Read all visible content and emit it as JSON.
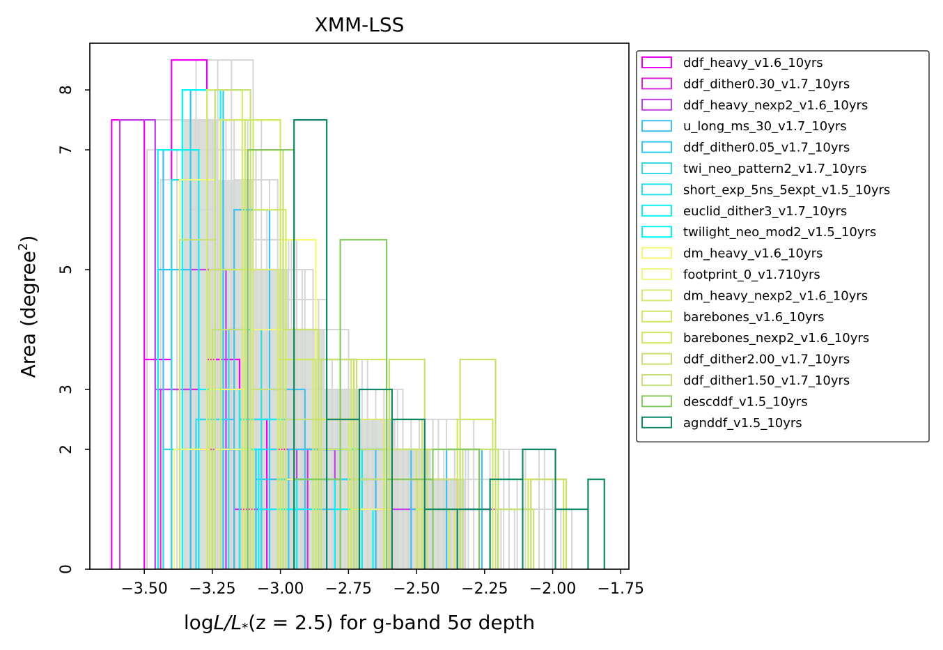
{
  "chart_data": {
    "type": "bar",
    "subtype": "step-histogram-overlay",
    "title": "XMM-LSS",
    "xlabel": {
      "prefix": "log",
      "mid": "L/L",
      "sub": "*",
      "paren": "(z = 2.5)",
      "suffix": " for g-band 5σ depth"
    },
    "ylabel": {
      "base": "Area (degree",
      "sup": "2",
      "end": ")"
    },
    "xlim": [
      -3.7,
      -1.72
    ],
    "ylim": [
      0,
      8.78
    ],
    "x_ticks": [
      -3.5,
      -3.25,
      -3.0,
      -2.75,
      -2.5,
      -2.25,
      -2.0,
      -1.75
    ],
    "x_tick_labels": [
      "−3.50",
      "−3.25",
      "−3.00",
      "−2.75",
      "−2.50",
      "−2.25",
      "−2.00",
      "−1.75"
    ],
    "y_ticks": [
      0,
      2,
      3,
      5,
      7,
      8
    ],
    "y_tick_labels": [
      "0",
      "2",
      "3",
      "5",
      "7",
      "8"
    ],
    "grid": false,
    "legend_position": "outside-right",
    "background_series_color": "#d6d6d6",
    "background_fill_color": "#d9ded9",
    "series": [
      {
        "name": "ddf_heavy_v1.6_10yrs",
        "color": "#f000f0",
        "edges": [
          -3.62,
          -3.5,
          -3.4,
          -3.27,
          -3.15,
          -3.05,
          -2.95,
          -2.85
        ],
        "counts": [
          7.5,
          3.5,
          8.5,
          3.5,
          2.5,
          2.0,
          1.0
        ]
      },
      {
        "name": "ddf_dither0.30_v1.7_10yrs",
        "color": "#e020e0",
        "edges": [
          -3.44,
          -3.3,
          -3.17,
          -3.05,
          -2.9,
          -2.75,
          -2.6
        ],
        "counts": [
          3.0,
          2.0,
          1.0,
          1.5,
          2.0,
          1.0
        ]
      },
      {
        "name": "ddf_heavy_nexp2_v1.6_10yrs",
        "color": "#c040e8",
        "edges": [
          -3.59,
          -3.46,
          -3.33,
          -3.2,
          -3.07,
          -2.94,
          -2.8,
          -2.65,
          -2.5,
          -2.35,
          -2.2
        ],
        "counts": [
          7.5,
          3.0,
          5.0,
          2.0,
          1.0,
          2.0,
          1.5,
          1.0,
          1.5,
          1.0
        ]
      },
      {
        "name": "u_long_ms_30_v1.7_10yrs",
        "color": "#40c0f0",
        "edges": [
          -3.43,
          -3.3,
          -3.17,
          -3.04,
          -2.91,
          -2.78,
          -2.65,
          -2.52,
          -2.39,
          -2.26
        ],
        "counts": [
          7.0,
          2.5,
          6.0,
          3.0,
          2.0,
          1.5,
          2.0,
          1.0,
          2.0
        ]
      },
      {
        "name": "ddf_dither0.05_v1.7_10yrs",
        "color": "#30c8f0",
        "edges": [
          -3.45,
          -3.33,
          -3.21,
          -3.09,
          -2.97,
          -2.85,
          -2.73,
          -2.61
        ],
        "counts": [
          5.0,
          8.0,
          2.0,
          1.5,
          2.0,
          1.0,
          2.0
        ]
      },
      {
        "name": "twi_neo_pattern2_v1.7_10yrs",
        "color": "#38d8e8",
        "edges": [
          -3.43,
          -3.31,
          -3.19,
          -3.07,
          -2.95,
          -2.83,
          -2.71
        ],
        "counts": [
          2.0,
          2.5,
          4.0,
          2.5,
          1.5,
          2.0
        ]
      },
      {
        "name": "short_exp_5ns_5expt_v1.5_10yrs",
        "color": "#20e0f0",
        "edges": [
          -3.4,
          -3.27,
          -3.14,
          -3.01,
          -2.88,
          -2.75,
          -2.62
        ],
        "counts": [
          6.5,
          3.0,
          2.0,
          1.5,
          1.5,
          2.0
        ]
      },
      {
        "name": "euclid_dither3_v1.7_10yrs",
        "color": "#10f0f0",
        "edges": [
          -3.45,
          -3.3,
          -3.15,
          -3.0,
          -2.85,
          -2.7
        ],
        "counts": [
          7.0,
          3.0,
          2.5,
          1.0,
          2.0
        ]
      },
      {
        "name": "twilight_neo_mod2_v1.5_10yrs",
        "color": "#00f8f8",
        "edges": [
          -3.36,
          -3.22,
          -3.08,
          -2.94,
          -2.8,
          -2.66
        ],
        "counts": [
          8.0,
          2.0,
          1.0,
          1.5,
          1.0
        ]
      },
      {
        "name": "dm_heavy_v1.6_10yrs",
        "color": "#f8f870",
        "edges": [
          -3.39,
          -3.26,
          -3.13,
          -3.0,
          -2.87,
          -2.74,
          -2.61,
          -2.48
        ],
        "counts": [
          2.0,
          3.0,
          7.0,
          5.5,
          2.5,
          1.0,
          2.0
        ]
      },
      {
        "name": "footprint_0_v1.710yrs",
        "color": "#f0f880",
        "edges": [
          -3.37,
          -3.24,
          -3.11,
          -2.98,
          -2.85,
          -2.72,
          -2.59
        ],
        "counts": [
          6.5,
          2.0,
          4.0,
          1.5,
          2.5,
          1.0
        ]
      },
      {
        "name": "dm_heavy_nexp2_v1.6_10yrs",
        "color": "#d8e870",
        "edges": [
          -3.27,
          -3.14,
          -3.01,
          -2.88,
          -2.75,
          -2.62,
          -2.49,
          -2.36
        ],
        "counts": [
          8.0,
          5.0,
          3.5,
          2.5,
          2.5,
          1.5,
          1.0
        ]
      },
      {
        "name": "barebones_v1.6_10yrs",
        "color": "#d0e868",
        "edges": [
          -3.22,
          -3.1,
          -2.98,
          -2.86,
          -2.74,
          -2.62,
          -2.5,
          -2.38
        ],
        "counts": [
          7.5,
          6.0,
          4.0,
          2.0,
          1.5,
          2.0,
          1.0
        ]
      },
      {
        "name": "barebones_nexp2_v1.6_10yrs",
        "color": "#d0e860",
        "edges": [
          -3.26,
          -3.13,
          -3.0,
          -2.87,
          -2.74,
          -2.61,
          -2.48,
          -2.35,
          -2.22,
          -2.09,
          -1.96
        ],
        "counts": [
          5.0,
          7.5,
          3.5,
          2.5,
          3.5,
          2.5,
          1.5,
          2.5,
          1.5,
          1.5
        ]
      },
      {
        "name": "ddf_dither2.00_v1.7_10yrs",
        "color": "#c8e070",
        "edges": [
          -3.25,
          -3.12,
          -2.99,
          -2.86,
          -2.73,
          -2.6,
          -2.47,
          -2.34,
          -2.21,
          -2.08,
          -1.95
        ],
        "counts": [
          4.0,
          7.0,
          4.0,
          3.5,
          2.0,
          3.5,
          2.0,
          3.5,
          1.0,
          1.5
        ]
      },
      {
        "name": "ddf_dither1.50_v1.7_10yrs",
        "color": "#c8e078",
        "edges": [
          -3.37,
          -3.24,
          -3.11,
          -2.98,
          -2.85,
          -2.72,
          -2.59,
          -2.46,
          -2.33,
          -2.2,
          -2.07
        ],
        "counts": [
          5.5,
          8.0,
          3.0,
          2.5,
          3.5,
          1.5,
          2.0,
          1.5,
          2.0,
          1.0
        ]
      },
      {
        "name": "descddf_v1.5_10yrs",
        "color": "#88c860",
        "edges": [
          -3.12,
          -2.95,
          -2.78,
          -2.61,
          -2.44,
          -2.27
        ],
        "counts": [
          7.0,
          1.5,
          5.5,
          1.5,
          2.0
        ]
      },
      {
        "name": "agnddf_v1.5_10yrs",
        "color": "#108868",
        "edges": [
          -2.95,
          -2.83,
          -2.71,
          -2.59,
          -2.47,
          -2.35,
          -2.23,
          -2.11,
          -1.99,
          -1.87,
          -1.81
        ],
        "counts": [
          7.5,
          2.5,
          3.0,
          2.5,
          1.0,
          1.0,
          1.5,
          2.0,
          1.0,
          1.5
        ]
      }
    ],
    "background_series": [
      {
        "edges": [
          -3.49,
          -3.36,
          -3.23,
          -3.1,
          -2.97,
          -2.84,
          -2.71,
          -2.58,
          -2.45,
          -2.32,
          -2.19
        ],
        "counts": [
          7.0,
          7.5,
          8.5,
          5.5,
          4.0,
          3.0,
          2.5,
          2.0,
          2.0,
          1.0
        ]
      },
      {
        "edges": [
          -3.4,
          -3.27,
          -3.14,
          -3.01,
          -2.88,
          -2.75,
          -2.62,
          -2.49,
          -2.36,
          -2.23,
          -2.1
        ],
        "counts": [
          7.5,
          7.5,
          6.5,
          5.0,
          4.0,
          3.0,
          2.5,
          2.0,
          1.5,
          2.0
        ]
      },
      {
        "edges": [
          -3.35,
          -3.22,
          -3.09,
          -2.96,
          -2.83,
          -2.7,
          -2.57,
          -2.44,
          -2.31,
          -2.18,
          -2.05
        ],
        "counts": [
          7.0,
          7.0,
          5.5,
          4.5,
          3.5,
          3.0,
          2.5,
          2.0,
          2.0,
          2.0
        ]
      },
      {
        "edges": [
          -3.3,
          -3.17,
          -3.04,
          -2.91,
          -2.78,
          -2.65,
          -2.52,
          -2.39,
          -2.26,
          -2.13,
          -2.0
        ],
        "counts": [
          7.5,
          6.5,
          5.0,
          4.0,
          3.0,
          2.5,
          2.5,
          1.5,
          1.0,
          1.5
        ]
      },
      {
        "edges": [
          -3.44,
          -3.31,
          -3.18,
          -3.05,
          -2.92,
          -2.79,
          -2.66,
          -2.53,
          -2.4,
          -2.27,
          -2.14
        ],
        "counts": [
          6.5,
          8.5,
          6.0,
          5.0,
          3.0,
          2.5,
          2.0,
          2.0,
          1.5,
          1.0
        ]
      },
      {
        "edges": [
          -3.46,
          -3.33,
          -3.2,
          -3.07,
          -2.94,
          -2.81,
          -2.68,
          -2.55,
          -2.42,
          -2.29,
          -2.16,
          -2.03
        ],
        "counts": [
          7.5,
          5.5,
          5.0,
          4.0,
          3.5,
          3.0,
          2.5,
          2.0,
          1.5,
          1.0,
          2.0
        ]
      },
      {
        "edges": [
          -3.38,
          -3.25,
          -3.12,
          -2.99,
          -2.86,
          -2.73,
          -2.6,
          -2.47,
          -2.34,
          -2.21,
          -2.08,
          -1.97
        ],
        "counts": [
          7.0,
          7.5,
          6.0,
          4.5,
          3.5,
          2.5,
          2.5,
          2.0,
          1.0,
          1.5,
          1.0
        ]
      },
      {
        "edges": [
          -3.33,
          -3.2,
          -3.07,
          -2.94,
          -2.81,
          -2.68,
          -2.55,
          -2.42,
          -2.29,
          -2.16,
          -2.03,
          -1.93
        ],
        "counts": [
          6.0,
          7.5,
          5.5,
          3.5,
          3.5,
          3.0,
          2.5,
          2.5,
          1.5,
          1.0,
          1.0
        ]
      }
    ],
    "background_fill": {
      "edges": [
        -3.36,
        -3.23,
        -3.1,
        -2.97,
        -2.84,
        -2.71,
        -2.58,
        -2.45,
        -2.32
      ],
      "counts": [
        7.5,
        6.5,
        5.0,
        4.0,
        3.0,
        2.5,
        2.0,
        1.5
      ]
    }
  }
}
